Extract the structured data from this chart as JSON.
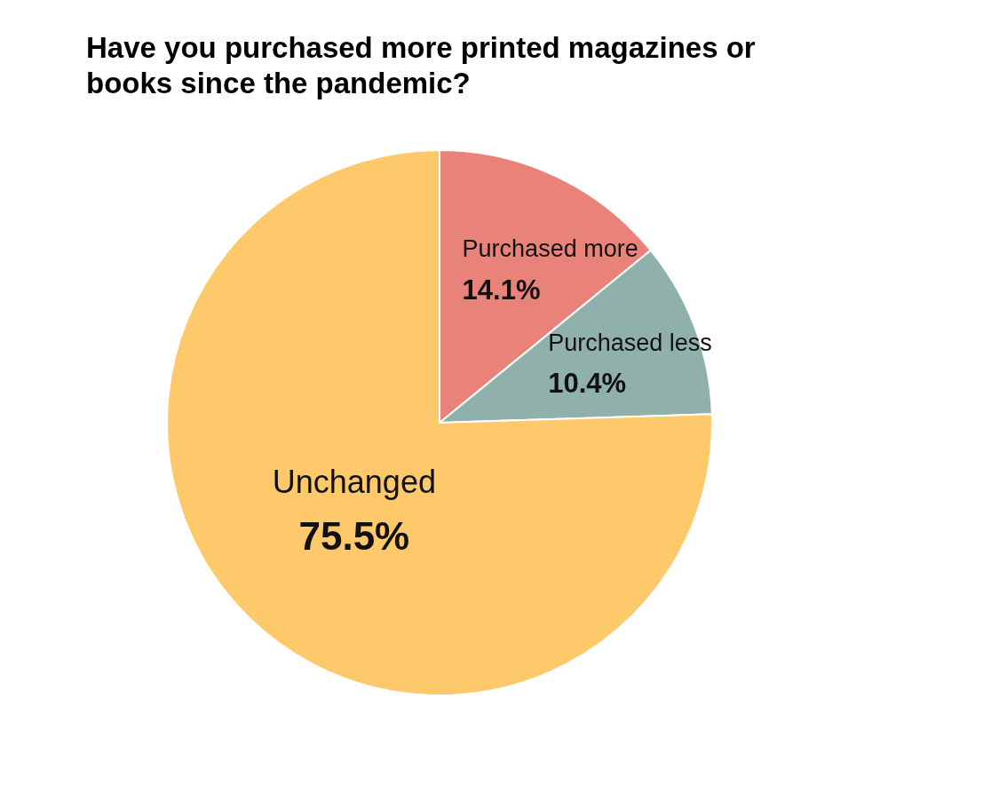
{
  "chart_data": {
    "type": "pie",
    "title": "Have you purchased more printed magazines or books since the pandemic?",
    "categories": [
      "Purchased more",
      "Purchased less",
      "Unchanged"
    ],
    "values": [
      14.1,
      10.4,
      75.5
    ],
    "value_labels": [
      "14.1%",
      "10.4%",
      "75.5%"
    ],
    "colors": [
      "#e9837a",
      "#8fb0ab",
      "#fdc96b"
    ]
  }
}
